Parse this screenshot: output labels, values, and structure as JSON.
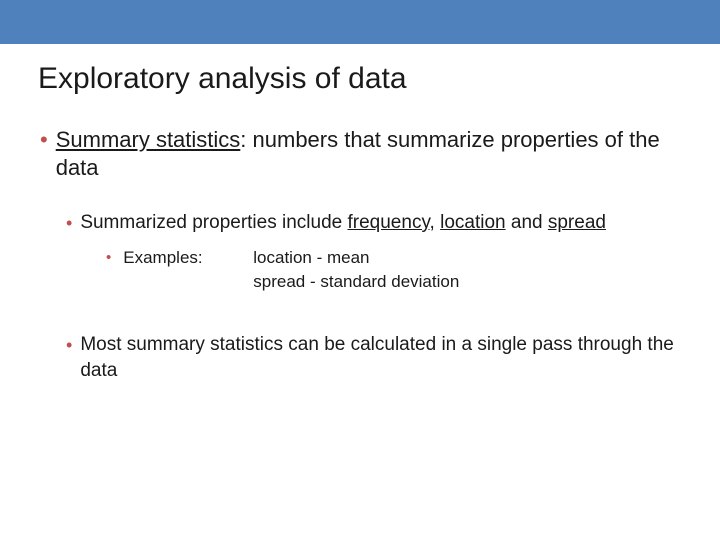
{
  "colors": {
    "top_bar": "#4f81bd",
    "bullet": "#c0504d",
    "text": "#1a1a1a",
    "background": "#ffffff"
  },
  "typography": {
    "title_fontsize": 30,
    "l1_fontsize": 22,
    "l2_fontsize": 19,
    "l3_fontsize": 17,
    "font_family": "Arial"
  },
  "title": "Exploratory analysis of data",
  "l1": {
    "prefix": "Summary statistics",
    "rest": ": numbers that summarize properties of the data"
  },
  "l2a": {
    "pre": "Summarized properties include ",
    "u1": "frequency",
    "mid1": ", ",
    "u2": "location",
    "mid2": " and ",
    "u3": "spread"
  },
  "l3": {
    "label": "Examples:",
    "line1": "location - mean",
    "line2": "spread - standard deviation"
  },
  "l2b": "Most summary statistics can be calculated in a single pass through the data"
}
